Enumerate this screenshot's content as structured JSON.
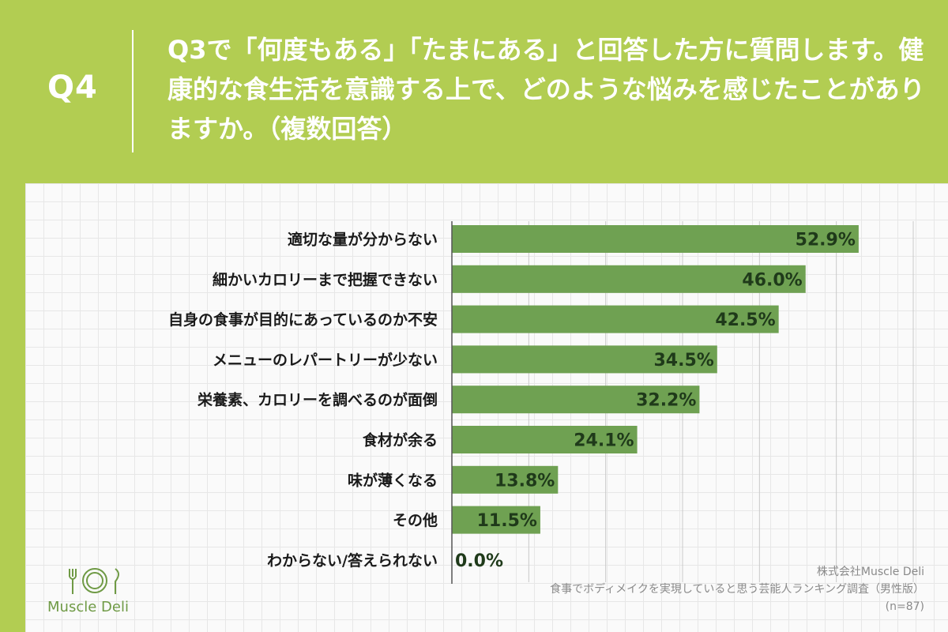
{
  "header": {
    "q_number": "Q4",
    "question": "Q3で「何度もある」「たまにある」と回答した方に質問します。健康的な食生活を意識する上で、どのような悩みを感じたことがありますか。（複数回答）"
  },
  "chart_data": {
    "type": "bar",
    "orientation": "horizontal",
    "categories": [
      "適切な量が分からない",
      "細かいカロリーまで把握できない",
      "自身の食事が目的にあっているのか不安",
      "メニューのレパートリーが少ない",
      "栄養素、カロリーを調べるのが面倒",
      "食材が余る",
      "味が薄くなる",
      "その他",
      "わからない/答えられない"
    ],
    "values": [
      52.9,
      46.0,
      42.5,
      34.5,
      32.2,
      24.1,
      13.8,
      11.5,
      0.0
    ],
    "value_labels": [
      "52.9%",
      "46.0%",
      "42.5%",
      "34.5%",
      "32.2%",
      "24.1%",
      "13.8%",
      "11.5%",
      "0.0%"
    ],
    "xlim": [
      0,
      60
    ],
    "grid": true,
    "legend": "none",
    "colors": {
      "bar": "#6fa152"
    }
  },
  "logo": {
    "text": "Muscle Deli"
  },
  "source": {
    "company": "株式会社Muscle Deli",
    "survey": "食事でボディメイクを実現していると思う芸能人ランキング調査（男性版）",
    "sample": "(n=87)"
  }
}
